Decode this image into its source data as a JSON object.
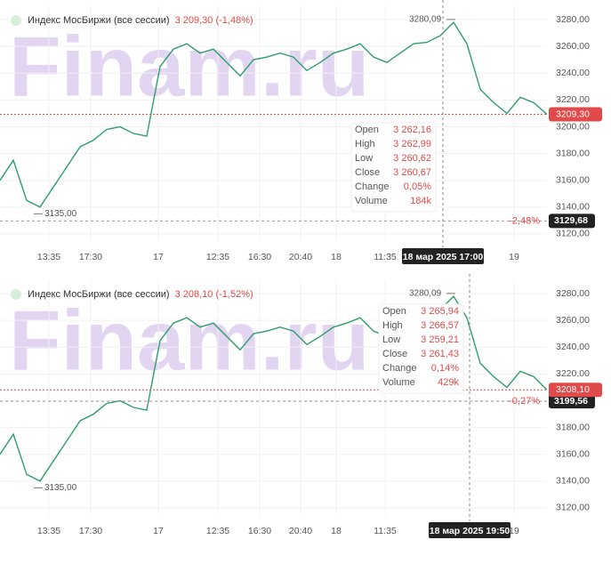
{
  "chart_data": [
    {
      "type": "line",
      "title": "Индекс МосБиржи (все сессии)",
      "quote": "3 209,30 (-1,48%)",
      "watermark": "Finam.ru",
      "color": "#2e9e6b",
      "x": [
        0,
        3,
        6,
        9,
        12,
        15,
        18,
        21,
        24,
        27,
        30,
        33,
        36,
        39,
        42,
        45,
        48,
        51,
        54,
        57,
        60,
        63,
        66,
        69,
        72,
        75,
        78,
        81,
        84,
        87,
        90,
        93,
        96,
        99,
        102,
        105,
        108,
        111,
        114,
        117,
        120,
        123
      ],
      "values": [
        3160,
        3175,
        3145,
        3140,
        3155,
        3170,
        3185,
        3190,
        3198,
        3200,
        3195,
        3193,
        3245,
        3258,
        3262,
        3255,
        3258,
        3248,
        3238,
        3250,
        3252,
        3255,
        3252,
        3242,
        3248,
        3255,
        3258,
        3262,
        3252,
        3248,
        3255,
        3262,
        3263,
        3268,
        3278,
        3262,
        3228,
        3218,
        3210,
        3222,
        3218,
        3209.3
      ],
      "xlim": [
        0,
        123
      ],
      "ylim": [
        3110,
        3290
      ],
      "xticks": [
        {
          "value": 11,
          "label": "13:35"
        },
        {
          "value": 20.4,
          "label": "17:30"
        },
        {
          "value": 35.6,
          "label": "17"
        },
        {
          "value": 49,
          "label": "12:35"
        },
        {
          "value": 58.4,
          "label": "16:30"
        },
        {
          "value": 67.6,
          "label": "20:40"
        },
        {
          "value": 75.6,
          "label": "18"
        },
        {
          "value": 86.6,
          "label": "11:35"
        },
        {
          "value": 115.6,
          "label": "19"
        }
      ],
      "yticks": [
        {
          "value": 3120,
          "label": "3120,00"
        },
        {
          "value": 3140,
          "label": "3140,00"
        },
        {
          "value": 3160,
          "label": "3160,00"
        },
        {
          "value": 3180,
          "label": "3180,00"
        },
        {
          "value": 3200,
          "label": "3200,00"
        },
        {
          "value": 3220,
          "label": "3220,00"
        },
        {
          "value": 3240,
          "label": "3240,00"
        },
        {
          "value": 3260,
          "label": "3260,00"
        },
        {
          "value": 3280,
          "label": "3280,00"
        }
      ],
      "last_price": {
        "value": 3209.3,
        "label": "3209,30"
      },
      "reference_price": {
        "value": 3129.68,
        "label": "3129,68",
        "change": "-2,48%"
      },
      "high_marker": {
        "value": 3280.09,
        "label": "3280,09"
      },
      "low_marker": {
        "value": 3135,
        "label": "3135,00"
      },
      "crosshair": "18 мар 2025 17:00",
      "tooltip": [
        {
          "label": "Open",
          "value": "3 262,16"
        },
        {
          "label": "High",
          "value": "3 262,99"
        },
        {
          "label": "Low",
          "value": "3 260,62"
        },
        {
          "label": "Close",
          "value": "3 260,67"
        },
        {
          "label": "Change",
          "value": "0,05%"
        },
        {
          "label": "Volume",
          "value": "184k"
        }
      ]
    },
    {
      "type": "line",
      "title": "Индекс МосБиржи (все сессии)",
      "quote": "3 208,10 (-1,52%)",
      "watermark": "Finam.ru",
      "color": "#2e9e6b",
      "x": [
        0,
        3,
        6,
        9,
        12,
        15,
        18,
        21,
        24,
        27,
        30,
        33,
        36,
        39,
        42,
        45,
        48,
        51,
        54,
        57,
        60,
        63,
        66,
        69,
        72,
        75,
        78,
        81,
        84,
        87,
        90,
        93,
        96,
        99,
        102,
        105,
        108,
        111,
        114,
        117,
        120,
        123
      ],
      "values": [
        3160,
        3175,
        3145,
        3140,
        3155,
        3170,
        3185,
        3190,
        3198,
        3200,
        3195,
        3193,
        3245,
        3258,
        3262,
        3255,
        3258,
        3248,
        3238,
        3250,
        3252,
        3255,
        3252,
        3242,
        3248,
        3255,
        3258,
        3262,
        3252,
        3248,
        3255,
        3262,
        3263,
        3268,
        3278,
        3262,
        3228,
        3218,
        3210,
        3222,
        3218,
        3208.1
      ],
      "xlim": [
        0,
        123
      ],
      "ylim": [
        3110,
        3290
      ],
      "xticks": [
        {
          "value": 11,
          "label": "13:35"
        },
        {
          "value": 20.4,
          "label": "17:30"
        },
        {
          "value": 35.6,
          "label": "17"
        },
        {
          "value": 49,
          "label": "12:35"
        },
        {
          "value": 58.4,
          "label": "16:30"
        },
        {
          "value": 67.6,
          "label": "20:40"
        },
        {
          "value": 75.6,
          "label": "18"
        },
        {
          "value": 86.6,
          "label": "11:35"
        },
        {
          "value": 115.6,
          "label": "19"
        }
      ],
      "yticks": [
        {
          "value": 3120,
          "label": "3120,00"
        },
        {
          "value": 3140,
          "label": "3140,00"
        },
        {
          "value": 3160,
          "label": "3160,00"
        },
        {
          "value": 3180,
          "label": "3180,00"
        },
        {
          "value": 3200,
          "label": "3200,00"
        },
        {
          "value": 3220,
          "label": "3220,00"
        },
        {
          "value": 3240,
          "label": "3240,00"
        },
        {
          "value": 3260,
          "label": "3260,00"
        },
        {
          "value": 3280,
          "label": "3280,00"
        }
      ],
      "last_price": {
        "value": 3208.1,
        "label": "3208,10"
      },
      "reference_price": {
        "value": 3199.56,
        "label": "3199,56",
        "change": "-0,27%"
      },
      "high_marker": {
        "value": 3280.09,
        "label": "3280,09"
      },
      "low_marker": {
        "value": 3135,
        "label": "3135,00"
      },
      "crosshair": "18 мар 2025 19:50",
      "tooltip": [
        {
          "label": "Open",
          "value": "3 265,94"
        },
        {
          "label": "High",
          "value": "3 266,57"
        },
        {
          "label": "Low",
          "value": "3 259,21"
        },
        {
          "label": "Close",
          "value": "3 261,43"
        },
        {
          "label": "Change",
          "value": "0,14%"
        },
        {
          "label": "Volume",
          "value": "429k"
        }
      ]
    }
  ]
}
